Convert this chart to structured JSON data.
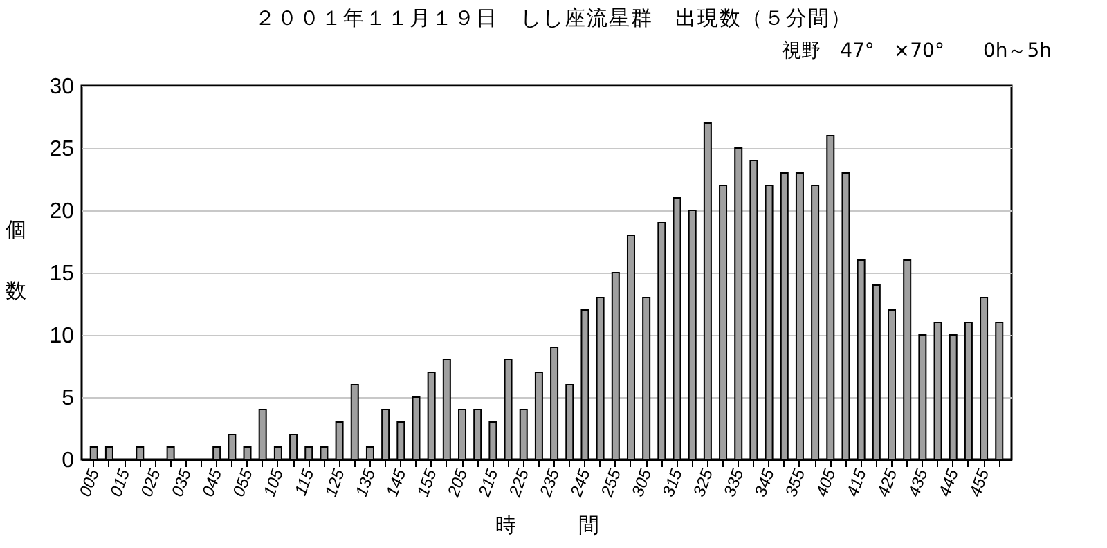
{
  "chart_data": {
    "type": "bar",
    "title": "２００１年１１月１９日　しし座流星群　出現数（５分間）",
    "subtitle": "視野　47°　×70°　　0h～5h",
    "xlabel": "時　　　間",
    "ylabel": "個数",
    "categories": [
      "005",
      null,
      "015",
      null,
      "025",
      null,
      "035",
      null,
      "045",
      null,
      "055",
      null,
      "105",
      null,
      "115",
      null,
      "125",
      null,
      "135",
      null,
      "145",
      null,
      "155",
      null,
      "205",
      null,
      "215",
      null,
      "225",
      null,
      "235",
      null,
      "245",
      null,
      "255",
      null,
      "305",
      null,
      "315",
      null,
      "325",
      null,
      "335",
      null,
      "345",
      null,
      "355",
      null,
      "405",
      null,
      "415",
      null,
      "425",
      null,
      "435",
      null,
      "445",
      null,
      "455",
      null
    ],
    "values": [
      1,
      1,
      0,
      1,
      0,
      1,
      0,
      0,
      1,
      2,
      1,
      4,
      1,
      2,
      1,
      1,
      3,
      6,
      1,
      4,
      3,
      5,
      7,
      8,
      4,
      4,
      3,
      8,
      4,
      7,
      9,
      6,
      12,
      13,
      15,
      18,
      13,
      19,
      21,
      20,
      27,
      22,
      25,
      24,
      22,
      23,
      23,
      22,
      26,
      23,
      16,
      14,
      12,
      16,
      10,
      11,
      10,
      11,
      13,
      11
    ],
    "color": "#a0a0a0",
    "ylim": [
      0,
      30
    ],
    "yticks": [
      0,
      5,
      10,
      15,
      20,
      25,
      30
    ],
    "grid": "y"
  }
}
